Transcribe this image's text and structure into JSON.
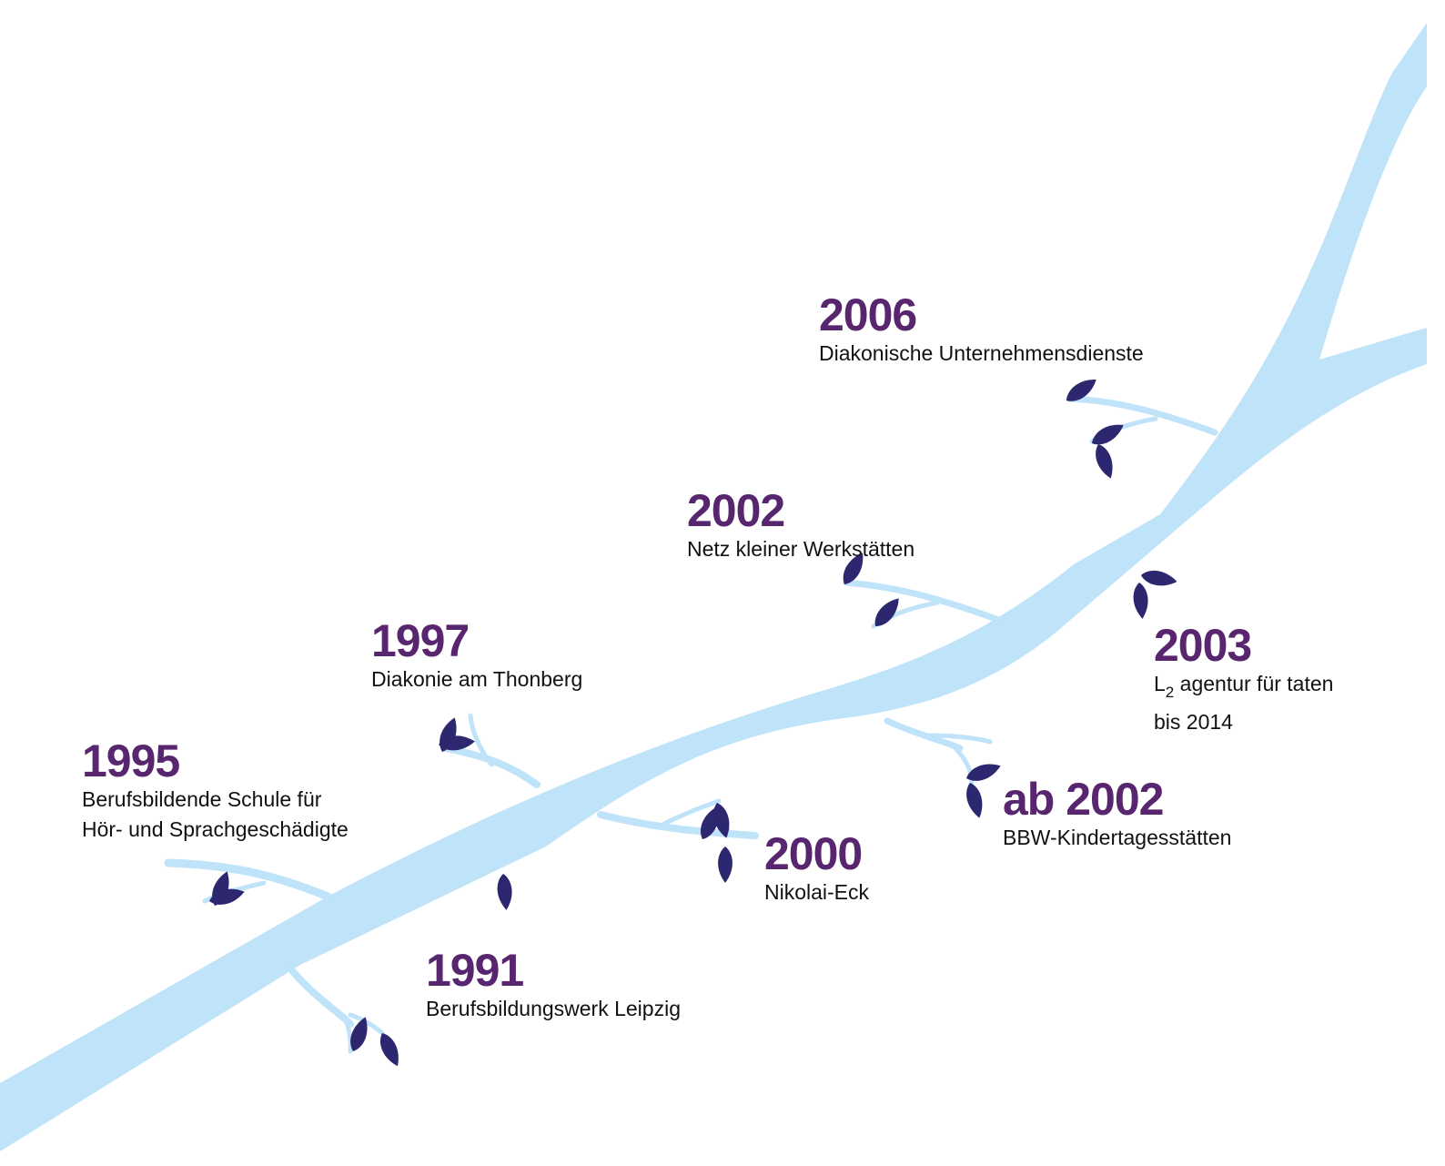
{
  "milestones": [
    {
      "year": "2006",
      "lines": [
        [
          "Diakonische Unternehmensdienste"
        ]
      ]
    },
    {
      "year": "2002",
      "lines": [
        [
          "Netz kleiner Werkstätten"
        ]
      ]
    },
    {
      "year": "1997",
      "lines": [
        [
          "Diakonie am Thonberg"
        ]
      ]
    },
    {
      "year": "1995",
      "lines": [
        [
          "Berufsbildende Schule für"
        ],
        [
          "Hör- und Sprachgeschädigte"
        ]
      ]
    },
    {
      "year": "1991",
      "lines": [
        [
          "Berufsbildungswerk Leipzig"
        ]
      ]
    },
    {
      "year": "2000",
      "lines": [
        [
          "Nikolai-Eck"
        ]
      ]
    },
    {
      "year": "ab 2002",
      "lines": [
        [
          "BBW-Kindertagesstätten"
        ]
      ]
    },
    {
      "year": "2003",
      "lines": [
        [
          "L",
          "2",
          " agentur für taten"
        ],
        [
          "bis 2014"
        ]
      ]
    }
  ]
}
